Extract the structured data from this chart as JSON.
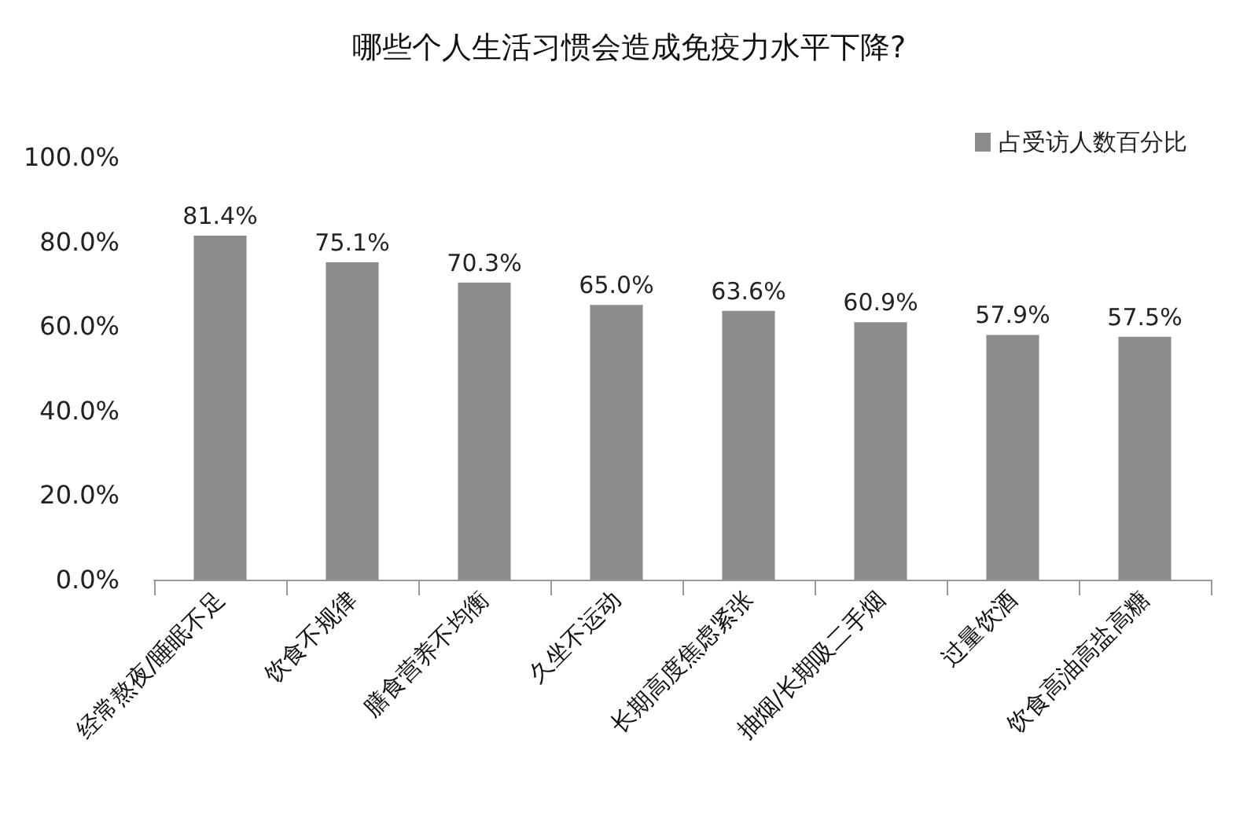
{
  "chart_data": {
    "type": "bar",
    "title": "哪些个人生活习惯会造成免疫力水平下降?",
    "categories": [
      "经常熬夜/睡眠不足",
      "饮食不规律",
      "膳食营养不均衡",
      "久坐不运动",
      "长期高度焦虑紧张",
      "抽烟/长期吸二手烟",
      "过量饮酒",
      "饮食高油高盐高糖"
    ],
    "series": [
      {
        "name": "占受访人数百分比",
        "color": "#8c8c8c",
        "values": [
          81.4,
          75.1,
          70.3,
          65.0,
          63.6,
          60.9,
          57.9,
          57.5
        ]
      }
    ],
    "value_labels": [
      "81.4%",
      "75.1%",
      "70.3%",
      "65.0%",
      "63.6%",
      "60.9%",
      "57.9%",
      "57.5%"
    ],
    "ylim": [
      0,
      100
    ],
    "yticks": [
      {
        "value": 0,
        "label": "0.0%"
      },
      {
        "value": 20,
        "label": "20.0%"
      },
      {
        "value": 40,
        "label": "40.0%"
      },
      {
        "value": 60,
        "label": "60.0%"
      },
      {
        "value": 80,
        "label": "80.0%"
      },
      {
        "value": 100,
        "label": "100.0%"
      }
    ],
    "grid": false,
    "legend": "top right"
  }
}
